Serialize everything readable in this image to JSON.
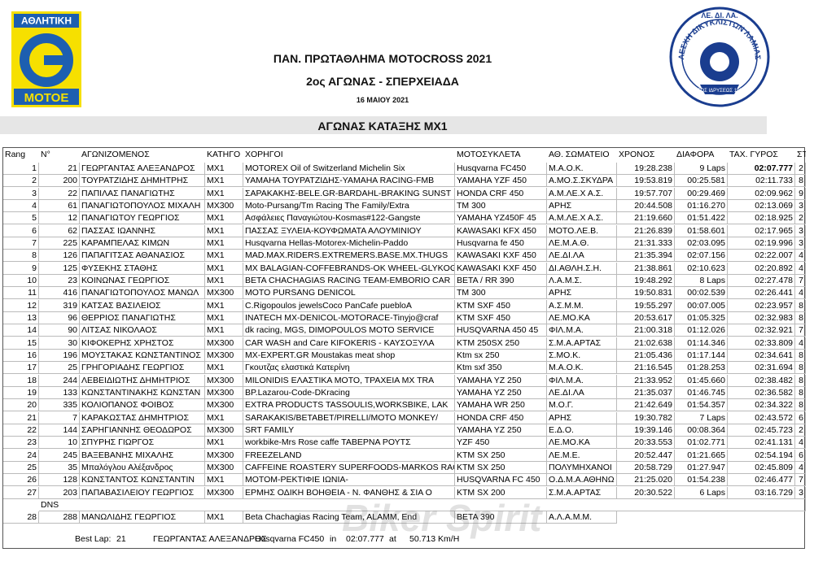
{
  "header": {
    "left_logo": {
      "top": "ΑΘΛΗΤΙΚΗ",
      "bottom": "ΜΟΤΟΕ"
    },
    "title": "ΠΑΝ. ΠΡΩΤΑΘΛΗΜΑ MOTOCROSS 2021",
    "subtitle": "2ος ΑΓΩΝΑΣ - ΣΠΕΡΧΕΙΑΔΑ",
    "date": "16 ΜΑΙΟΥ 2021",
    "right_logo": {
      "top": "ΛΕ. ΔΙ. ΛΑ.",
      "ring": "ΛΕΣΧΗ ΔΙΚΥΚΛΙΣΤΩΝ ΛΑΜΙΑΣ",
      "bottom": "ΕΤΟΣ ΙΔΡΥΣΕΩΣ 1984"
    }
  },
  "section_title": "ΑΓΩΝΑΣ ΚΑΤΑΞΗΣ MX1",
  "table": {
    "columns": [
      "Rang",
      "N°",
      "ΑΓΩΝΙΖΟΜΕΝΟΣ",
      "ΚΑΤΗΓΟ",
      "ΧΟΡΗΓΟΙ",
      "ΜΟΤΟΣΥΚΛΕΤΑ",
      "ΑΘ. ΣΩΜΑΤΕΙΟ",
      "ΧΡΟΝΟΣ",
      "ΔΙΑΦΟΡΑ",
      "ΤΑΧ. ΓΥΡΟΣ",
      "ΣΤΟ"
    ],
    "rows": [
      [
        "1",
        "21",
        "ΓΕΩΡΓΑΝΤΑΣ ΑΛΕΞΑΝΔΡΟΣ",
        "MX1",
        "MOTOREX Oil of Switzerland Michelin Six",
        "Husqvarna FC450",
        "Μ.Α.Ο.Κ.",
        "19:28.238",
        "9 Laps",
        "02:07.777",
        "2"
      ],
      [
        "2",
        "200",
        "ΤΟΥΡΑΤΖΙΔΗΣ ΔΗΜΗΤΡΗΣ",
        "MX1",
        "YAMAHA ΤΟΥΡΑΤΖΙΔΗΣ-YAMAHA RACING-FMB",
        "YAMAHA YZF 450",
        "Α.ΜΟ.Σ.ΣΚΥΔΡΑ",
        "19:53.819",
        "00:25.581",
        "02:11.733",
        "8"
      ],
      [
        "3",
        "22",
        "ΠΑΠΙΛΑΣ ΠΑΝΑΓΙΩΤΗΣ",
        "MX1",
        "ΣΑΡΑΚΑΚΗΣ-BELE.GR-BARDAHL-BRAKING SUNST",
        "HONDA CRF 450",
        "Α.Μ.ΛΕ.Χ Α.Σ.",
        "19:57.707",
        "00:29.469",
        "02:09.962",
        "9"
      ],
      [
        "4",
        "61",
        "ΠΑΝΑΓΙΩΤΟΠΟΥΛΟΣ ΜΙΧΑΛΗ",
        "MX300",
        "Moto-Pursang/Tm Racing The Family/Extra",
        "TM 300",
        "ΑΡΗΣ",
        "20:44.508",
        "01:16.270",
        "02:13.069",
        "3"
      ],
      [
        "5",
        "12",
        "ΠΑΝΑΓΙΩΤΟΥ ΓΕΩΡΓΙΟΣ",
        "MX1",
        "Ασφάλειες Παναγιώτου-Kosmas#122-Gangste",
        "YAMAHA YZ450F 45",
        "Α.Μ.ΛΕ.Χ Α.Σ.",
        "21:19.660",
        "01:51.422",
        "02:18.925",
        "2"
      ],
      [
        "6",
        "62",
        "ΠΑΣΣΑΣ ΙΩΑΝΝΗΣ",
        "MX1",
        "ΠΑΣΣΑΣ ΞΥΛΕΙΑ-ΚΟΥΦΩΜΑΤΑ ΑΛΟΥΜΙΝΙΟΥ",
        "KAWASAKI KFX 450",
        "ΜΟΤΟ.ΛΕ.Β.",
        "21:26.839",
        "01:58.601",
        "02:17.965",
        "3"
      ],
      [
        "7",
        "225",
        "ΚΑΡΑΜΠΕΛΑΣ ΚΙΜΩΝ",
        "MX1",
        "Husqvarna Hellas-Motorex-Michelin-Paddo",
        "Husqvarna fe 450",
        "ΛΕ.Μ.Α.Θ.",
        "21:31.333",
        "02:03.095",
        "02:19.996",
        "3"
      ],
      [
        "8",
        "126",
        "ΠΑΠΑΓΙΤΣΑΣ ΑΘΑΝΑΣΙΟΣ",
        "MX1",
        "MAD.MAX.RIDERS.EXTREMERS.BASE.MX.THUGS",
        "KAWASAKI KXF 450",
        "ΛΕ.ΔΙ.ΛΑ",
        "21:35.394",
        "02:07.156",
        "02:22.007",
        "4"
      ],
      [
        "9",
        "125",
        "ΦΥΣΕΚΗΣ ΣΤΑΘΗΣ",
        "MX1",
        "MX BALAGIAN-COFFEBRANDS-OK WHEEL-GLYKOG",
        "KAWASAKI KXF 450",
        "ΔΙ.ΑΘΛΗ.Σ.Η.",
        "21:38.861",
        "02:10.623",
        "02:20.892",
        "4"
      ],
      [
        "10",
        "23",
        "ΚΟΙΝΩΝΑΣ ΓΕΩΡΓΙΟΣ",
        "MX1",
        "BETA CHACHAGIAS RACING TEAM-EMBORIO CAR",
        "BETA / RR 390",
        "Λ.Α.Μ.Σ.",
        "19:48.292",
        "8 Laps",
        "02:27.478",
        "7"
      ],
      [
        "11",
        "416",
        "ΠΑΝΑΓΙΩΤΟΠΟΥΛΟΣ ΜΑΝΩΛ",
        "MX300",
        "MOTO PURSANG DENICOL",
        "TM 300",
        "ΑΡΗΣ",
        "19:50.831",
        "00:02.539",
        "02:26.441",
        "4"
      ],
      [
        "12",
        "319",
        "ΚΑΤΣΑΣ ΒΑΣΙΛΕΙΟΣ",
        "MX1",
        "C.Rigopoulos jewelsCoco PanCafe puebloA",
        "KTM SXF 450",
        "Α.Σ.Μ.Μ.",
        "19:55.297",
        "00:07.005",
        "02:23.957",
        "8"
      ],
      [
        "13",
        "96",
        "ΘΕΡΡΙΟΣ ΠΑΝΑΓΙΩΤΗΣ",
        "MX1",
        "INATECH MX-DENICOL-MOTORACE-Tinyjo@craf",
        "KTM SXF 450",
        "ΛΕ.ΜΟ.ΚΑ",
        "20:53.617",
        "01:05.325",
        "02:32.983",
        "8"
      ],
      [
        "14",
        "90",
        "ΛΙΤΣΑΣ ΝΙΚΟΛΑΟΣ",
        "MX1",
        "dk racing, MGS, DIMOPOULOS MOTO SERVICE",
        "HUSQVARNA 450 45",
        "ΦΙΛ.Μ.Α.",
        "21:00.318",
        "01:12.026",
        "02:32.921",
        "7"
      ],
      [
        "15",
        "30",
        "ΚΙΦΟΚΕΡΗΣ ΧΡΗΣΤΟΣ",
        "MX300",
        "CAR WASH and Care KIFOKERIS - ΚΑΥΣΟΞΥΛΑ",
        "KTM 250SX 250",
        "Σ.Μ.Α.ΑΡΤΑΣ",
        "21:02.638",
        "01:14.346",
        "02:33.809",
        "4"
      ],
      [
        "16",
        "196",
        "ΜΟΥΣΤΑΚΑΣ ΚΩΝΣΤΑΝΤΙΝΟΣ",
        "MX300",
        "MX-EXPERT.GR Moustakas meat shop",
        "Ktm sx 250",
        "Σ.ΜΟ.Κ.",
        "21:05.436",
        "01:17.144",
        "02:34.641",
        "8"
      ],
      [
        "17",
        "25",
        "ΓΡΗΓΟΡΙΑΔΗΣ ΓΕΩΡΓΙΟΣ",
        "MX1",
        "Γκουτζας ελαστικά Κατερίνη",
        "Ktm sxf 350",
        "Μ.Α.Ο.Κ.",
        "21:16.545",
        "01:28.253",
        "02:31.694",
        "8"
      ],
      [
        "18",
        "244",
        "ΛΕΒΕΙΔΙΩΤΗΣ ΔΗΜΗΤΡΙΟΣ",
        "MX300",
        "MILONIDIS ΕΛΑΣΤΙΚΑ ΜΟΤΟ, ΤΡΑΧΕΙΑ MX TRA",
        "YAMAHA YZ 250",
        "ΦΙΛ.Μ.Α.",
        "21:33.952",
        "01:45.660",
        "02:38.482",
        "8"
      ],
      [
        "19",
        "133",
        "ΚΩΝΣΤΑΝΤΙΝΑΚΗΣ ΚΩΝΣΤΑΝ",
        "MX300",
        "BP.Lazarou-Code-DKracing",
        "YAMAHA YZ 250",
        "ΛΕ.ΔΙ.ΛΑ",
        "21:35.037",
        "01:46.745",
        "02:36.582",
        "8"
      ],
      [
        "20",
        "335",
        "ΚΟΛΙΟΠΑΝΟΣ ΦΟΙΒΟΣ",
        "MX300",
        "EXTRA PRODUCTS TASSOULIS,WORKSBIKE, LAK",
        "YAMAHA WR 250",
        "Μ.Ο.Γ.",
        "21:42.649",
        "01:54.357",
        "02:34.322",
        "8"
      ],
      [
        "21",
        "7",
        "ΚΑΡΑΚΩΣΤΑΣ ΔΗΜΗΤΡΙΟΣ",
        "MX1",
        "SARAKAKIS/BETABET/PIRELLI/MOTO MONKEY/",
        "HONDA CRF 450",
        "ΑΡΗΣ",
        "19:30.782",
        "7 Laps",
        "02:43.572",
        "6"
      ],
      [
        "22",
        "144",
        "ΣΑΡΗΓΙΑΝΝΗΣ ΘΕΟΔΩΡΟΣ",
        "MX300",
        "SRT FAMILY",
        "YAMAHA  YZ 250",
        "Ε.Δ.Ο.",
        "19:39.146",
        "00:08.364",
        "02:45.723",
        "2"
      ],
      [
        "23",
        "10",
        "ΣΠΥΡΗΣ ΓΙΩΡΓΟΣ",
        "MX1",
        "workbike-Mrs Rose caffe  ΤΑΒΕΡΝΑ ΡΟΥΤΣ",
        "YZF 450",
        "ΛΕ.ΜΟ.ΚΑ",
        "20:33.553",
        "01:02.771",
        "02:41.131",
        "4"
      ],
      [
        "24",
        "245",
        "ΒΑΞΕΒΑΝΗΣ ΜΙΧΑΛΗΣ",
        "MX300",
        "FREEZELAND",
        "KTM SX 250",
        "ΛΕ.Μ.Ε.",
        "20:52.447",
        "01:21.665",
        "02:54.194",
        "6"
      ],
      [
        "25",
        "35",
        "Μπαλόγλου Αλέξανδρος",
        "MX300",
        "CAFFEINE ROASTERY SUPERFOODS-MARKOS RAC",
        "KTM SX 250",
        "ΠΟΛΥΜΗΧΑΝΟΙ",
        "20:58.729",
        "01:27.947",
        "02:45.809",
        "4"
      ],
      [
        "26",
        "128",
        "ΚΩΝΣΤΑΝΤΟΣ ΚΩΝΣΤΑΝΤΙΝ",
        "MX1",
        "ΜΟΤΟΜ-ΡΕΚΤΙΦΙΕ ΙΩΝΙΑ-",
        "HUSQVARNA  FC 450",
        "Ο.Δ.Μ.Α.ΑΘΗΝΩ",
        "21:25.020",
        "01:54.238",
        "02:46.477",
        "7"
      ],
      [
        "27",
        "203",
        "ΠΑΠΑΒΑΣΙΛΕΙΟΥ ΓΕΩΡΓΙΟΣ",
        "MX300",
        "ΕΡΜΗΣ ΟΔΙΚΗ ΒΟΗΘΕΙΑ - Ν. ΦΑΝΘΗΣ & ΣΙΑ Ο",
        "KTM SX 200",
        "Σ.Μ.Α.ΑΡΤΑΣ",
        "20:30.522",
        "6 Laps",
        "03:16.729",
        "3"
      ]
    ],
    "dns_label": "DNS",
    "dns_rows": [
      [
        "28",
        "288",
        "ΜΑΝΩΛΙΔΗΣ ΓΕΩΡΓΙΟΣ",
        "MX1",
        "Beta Chachagias Racing Team, ALAMM, End",
        "BETA 390",
        "Α.Λ.Α.Μ.Μ."
      ]
    ]
  },
  "footer": [
    "Best Lap:",
    "21",
    "ΓΕΩΡΓΑΝΤΑΣ ΑΛΕΞΑΝΔΡΟΣ",
    "Husqvarna FC450",
    "in",
    "02:07.777",
    "at",
    "50.713 Km/H"
  ],
  "watermark": "Biker Spirit"
}
